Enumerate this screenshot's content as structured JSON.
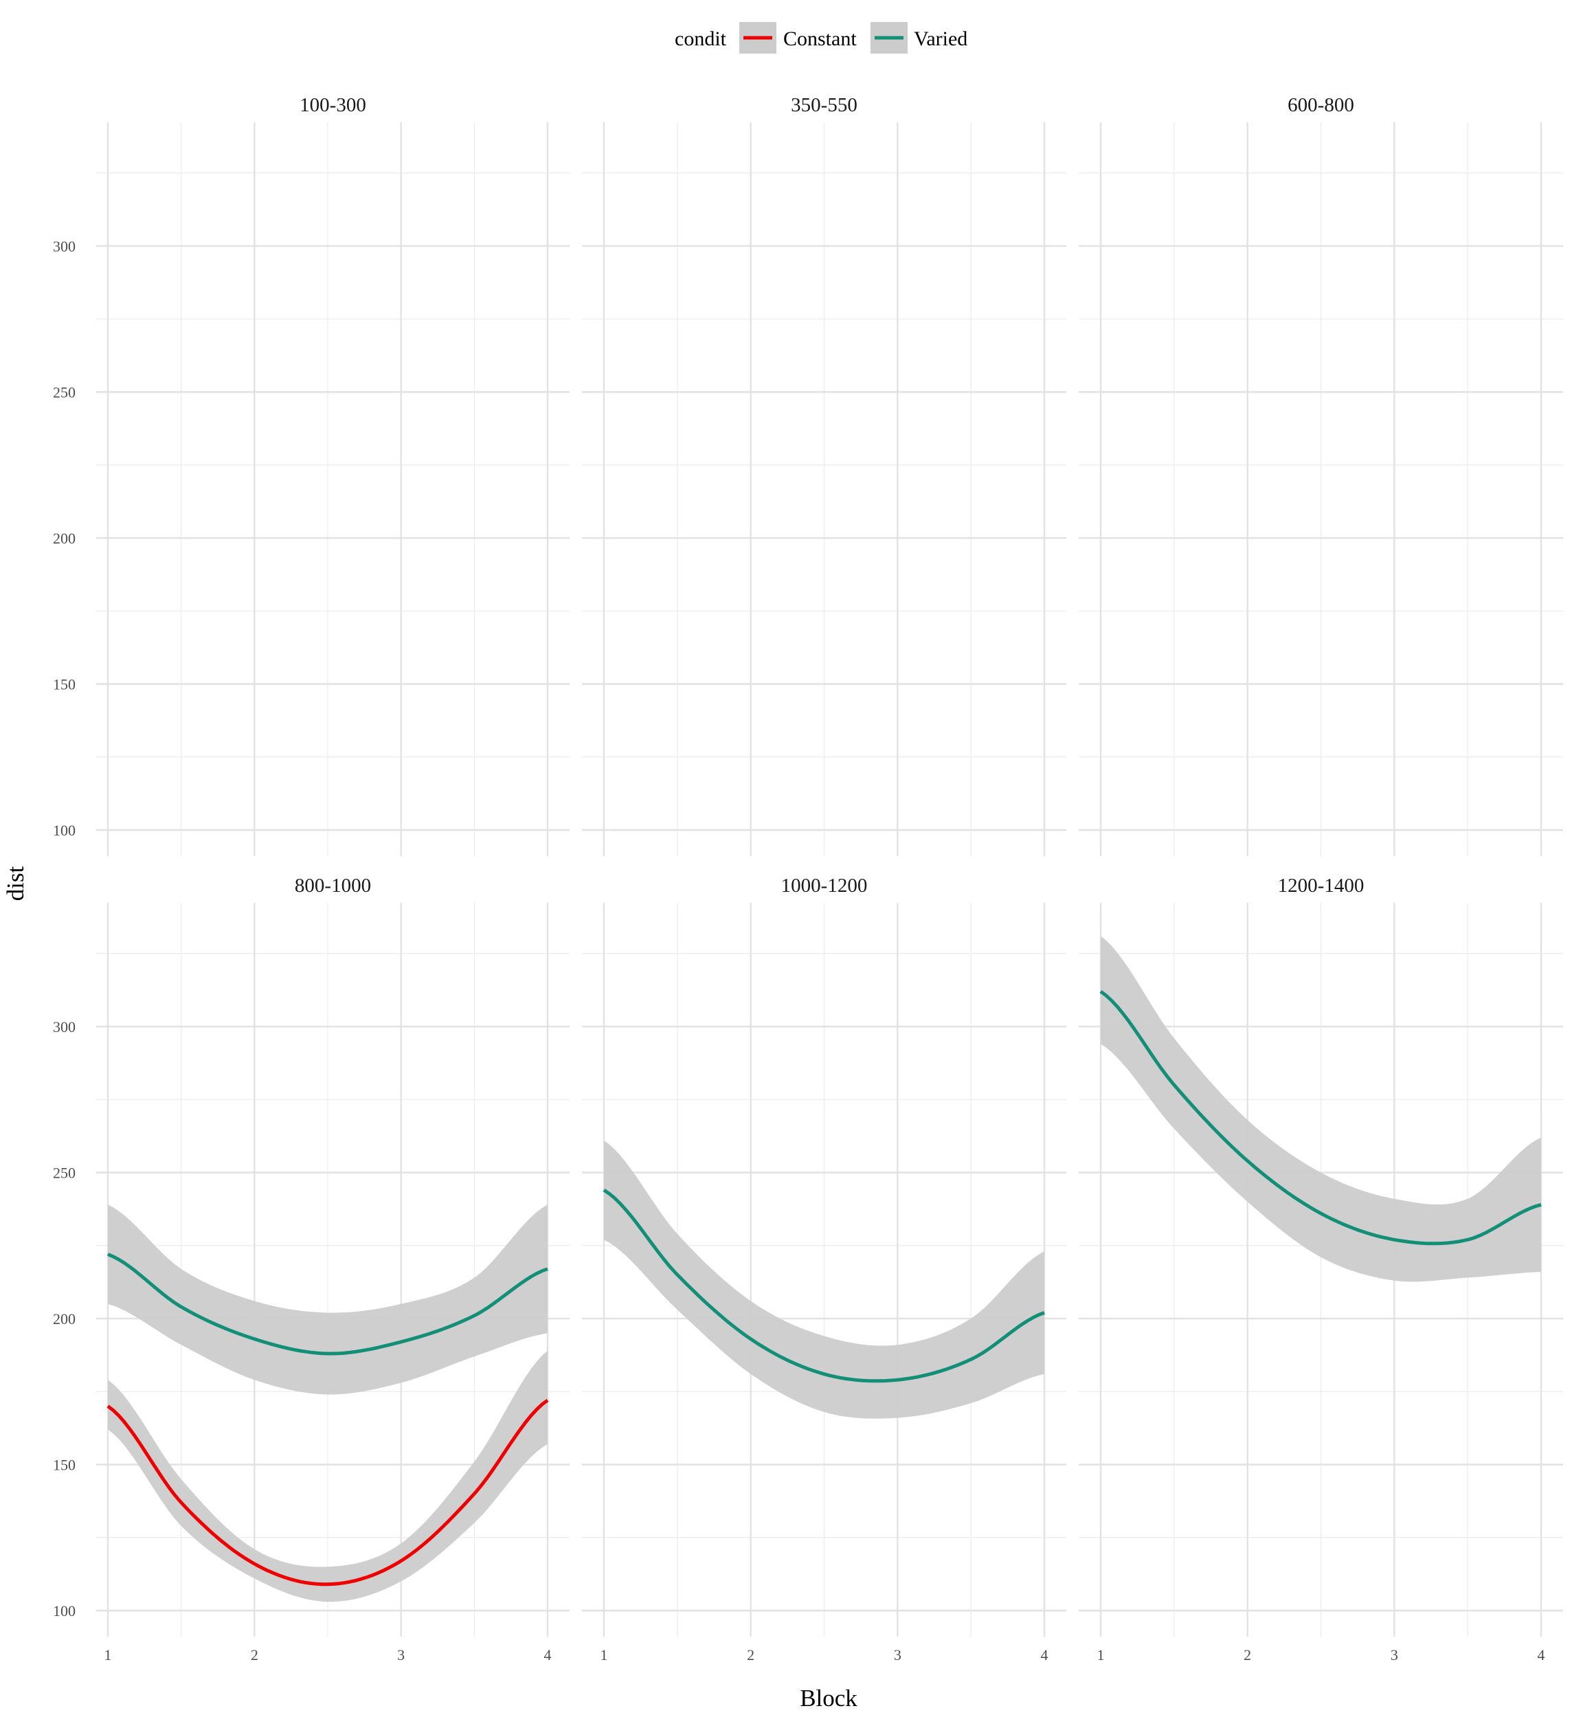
{
  "chart_data": {
    "type": "line",
    "title": "",
    "xlabel": "Block",
    "ylabel": "dist",
    "x_ticks": [
      1,
      2,
      3,
      4
    ],
    "y_ticks": [
      100,
      150,
      200,
      250,
      300
    ],
    "xlim": [
      0.99,
      4.15
    ],
    "ylim": [
      93,
      336
    ],
    "grid": true,
    "legend": {
      "title": "condit",
      "placement": "top",
      "entries": [
        {
          "name": "Constant",
          "color": "#ee0000"
        },
        {
          "name": "Varied",
          "color": "#148f77"
        }
      ]
    },
    "band_color": "#cccccc",
    "facets": [
      {
        "label": "100-300",
        "series": []
      },
      {
        "label": "350-550",
        "series": []
      },
      {
        "label": "600-800",
        "series": []
      },
      {
        "label": "800-1000",
        "series": [
          {
            "name": "Varied",
            "x": [
              1.0,
              1.5,
              2.0,
              2.5,
              3.0,
              3.5,
              4.0
            ],
            "y": [
              222,
              204,
              193,
              188,
              192,
              201,
              217
            ],
            "lower": [
              205,
              191,
              179,
              174,
              178,
              187,
              195
            ],
            "upper": [
              239,
              217,
              206,
              202,
              205,
              214,
              239
            ]
          },
          {
            "name": "Constant",
            "x": [
              1.0,
              1.5,
              2.0,
              2.5,
              3.0,
              3.5,
              4.0
            ],
            "y": [
              170,
              137,
              116,
              109,
              117,
              140,
              172
            ],
            "lower": [
              162,
              129,
              111,
              103,
              110,
              130,
              157
            ],
            "upper": [
              179,
              145,
              121,
              115,
              123,
              151,
              189
            ]
          }
        ]
      },
      {
        "label": "1000-1200",
        "series": [
          {
            "name": "Varied",
            "x": [
              1.0,
              1.5,
              2.0,
              2.5,
              3.0,
              3.5,
              4.0
            ],
            "y": [
              244,
              215,
              193,
              181,
              179,
              186,
              202
            ],
            "lower": [
              227,
              203,
              181,
              168,
              166,
              171,
              181
            ],
            "upper": [
              261,
              229,
              206,
              194,
              191,
              200,
              223
            ]
          }
        ]
      },
      {
        "label": "1200-1400",
        "series": [
          {
            "name": "Varied",
            "x": [
              1.0,
              1.5,
              2.0,
              2.5,
              3.0,
              3.5,
              4.0
            ],
            "y": [
              312,
              280,
              254,
              236,
              227,
              227,
              239
            ],
            "lower": [
              294,
              265,
              240,
              221,
              213,
              214,
              216
            ],
            "upper": [
              331,
              296,
              268,
              250,
              241,
              241,
              262
            ]
          }
        ]
      }
    ]
  }
}
